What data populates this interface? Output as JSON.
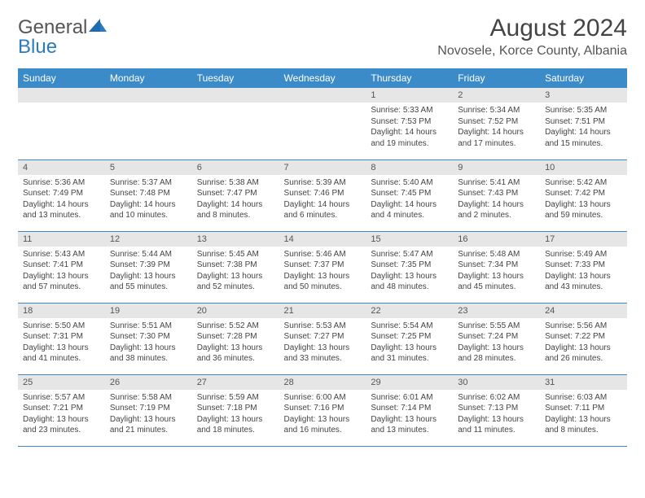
{
  "brand": {
    "part1": "General",
    "part2": "Blue"
  },
  "title": "August 2024",
  "location": "Novosele, Korce County, Albania",
  "header_bg": "#3b8bc9",
  "daynum_bg": "#e6e6e6",
  "day_headers": [
    "Sunday",
    "Monday",
    "Tuesday",
    "Wednesday",
    "Thursday",
    "Friday",
    "Saturday"
  ],
  "weeks": [
    [
      {
        "blank": true
      },
      {
        "blank": true
      },
      {
        "blank": true
      },
      {
        "blank": true
      },
      {
        "n": "1",
        "sr": "5:33 AM",
        "ss": "7:53 PM",
        "dl": "14 hours and 19 minutes."
      },
      {
        "n": "2",
        "sr": "5:34 AM",
        "ss": "7:52 PM",
        "dl": "14 hours and 17 minutes."
      },
      {
        "n": "3",
        "sr": "5:35 AM",
        "ss": "7:51 PM",
        "dl": "14 hours and 15 minutes."
      }
    ],
    [
      {
        "n": "4",
        "sr": "5:36 AM",
        "ss": "7:49 PM",
        "dl": "14 hours and 13 minutes."
      },
      {
        "n": "5",
        "sr": "5:37 AM",
        "ss": "7:48 PM",
        "dl": "14 hours and 10 minutes."
      },
      {
        "n": "6",
        "sr": "5:38 AM",
        "ss": "7:47 PM",
        "dl": "14 hours and 8 minutes."
      },
      {
        "n": "7",
        "sr": "5:39 AM",
        "ss": "7:46 PM",
        "dl": "14 hours and 6 minutes."
      },
      {
        "n": "8",
        "sr": "5:40 AM",
        "ss": "7:45 PM",
        "dl": "14 hours and 4 minutes."
      },
      {
        "n": "9",
        "sr": "5:41 AM",
        "ss": "7:43 PM",
        "dl": "14 hours and 2 minutes."
      },
      {
        "n": "10",
        "sr": "5:42 AM",
        "ss": "7:42 PM",
        "dl": "13 hours and 59 minutes."
      }
    ],
    [
      {
        "n": "11",
        "sr": "5:43 AM",
        "ss": "7:41 PM",
        "dl": "13 hours and 57 minutes."
      },
      {
        "n": "12",
        "sr": "5:44 AM",
        "ss": "7:39 PM",
        "dl": "13 hours and 55 minutes."
      },
      {
        "n": "13",
        "sr": "5:45 AM",
        "ss": "7:38 PM",
        "dl": "13 hours and 52 minutes."
      },
      {
        "n": "14",
        "sr": "5:46 AM",
        "ss": "7:37 PM",
        "dl": "13 hours and 50 minutes."
      },
      {
        "n": "15",
        "sr": "5:47 AM",
        "ss": "7:35 PM",
        "dl": "13 hours and 48 minutes."
      },
      {
        "n": "16",
        "sr": "5:48 AM",
        "ss": "7:34 PM",
        "dl": "13 hours and 45 minutes."
      },
      {
        "n": "17",
        "sr": "5:49 AM",
        "ss": "7:33 PM",
        "dl": "13 hours and 43 minutes."
      }
    ],
    [
      {
        "n": "18",
        "sr": "5:50 AM",
        "ss": "7:31 PM",
        "dl": "13 hours and 41 minutes."
      },
      {
        "n": "19",
        "sr": "5:51 AM",
        "ss": "7:30 PM",
        "dl": "13 hours and 38 minutes."
      },
      {
        "n": "20",
        "sr": "5:52 AM",
        "ss": "7:28 PM",
        "dl": "13 hours and 36 minutes."
      },
      {
        "n": "21",
        "sr": "5:53 AM",
        "ss": "7:27 PM",
        "dl": "13 hours and 33 minutes."
      },
      {
        "n": "22",
        "sr": "5:54 AM",
        "ss": "7:25 PM",
        "dl": "13 hours and 31 minutes."
      },
      {
        "n": "23",
        "sr": "5:55 AM",
        "ss": "7:24 PM",
        "dl": "13 hours and 28 minutes."
      },
      {
        "n": "24",
        "sr": "5:56 AM",
        "ss": "7:22 PM",
        "dl": "13 hours and 26 minutes."
      }
    ],
    [
      {
        "n": "25",
        "sr": "5:57 AM",
        "ss": "7:21 PM",
        "dl": "13 hours and 23 minutes."
      },
      {
        "n": "26",
        "sr": "5:58 AM",
        "ss": "7:19 PM",
        "dl": "13 hours and 21 minutes."
      },
      {
        "n": "27",
        "sr": "5:59 AM",
        "ss": "7:18 PM",
        "dl": "13 hours and 18 minutes."
      },
      {
        "n": "28",
        "sr": "6:00 AM",
        "ss": "7:16 PM",
        "dl": "13 hours and 16 minutes."
      },
      {
        "n": "29",
        "sr": "6:01 AM",
        "ss": "7:14 PM",
        "dl": "13 hours and 13 minutes."
      },
      {
        "n": "30",
        "sr": "6:02 AM",
        "ss": "7:13 PM",
        "dl": "13 hours and 11 minutes."
      },
      {
        "n": "31",
        "sr": "6:03 AM",
        "ss": "7:11 PM",
        "dl": "13 hours and 8 minutes."
      }
    ]
  ],
  "labels": {
    "sunrise": "Sunrise: ",
    "sunset": "Sunset: ",
    "daylight": "Daylight: "
  }
}
